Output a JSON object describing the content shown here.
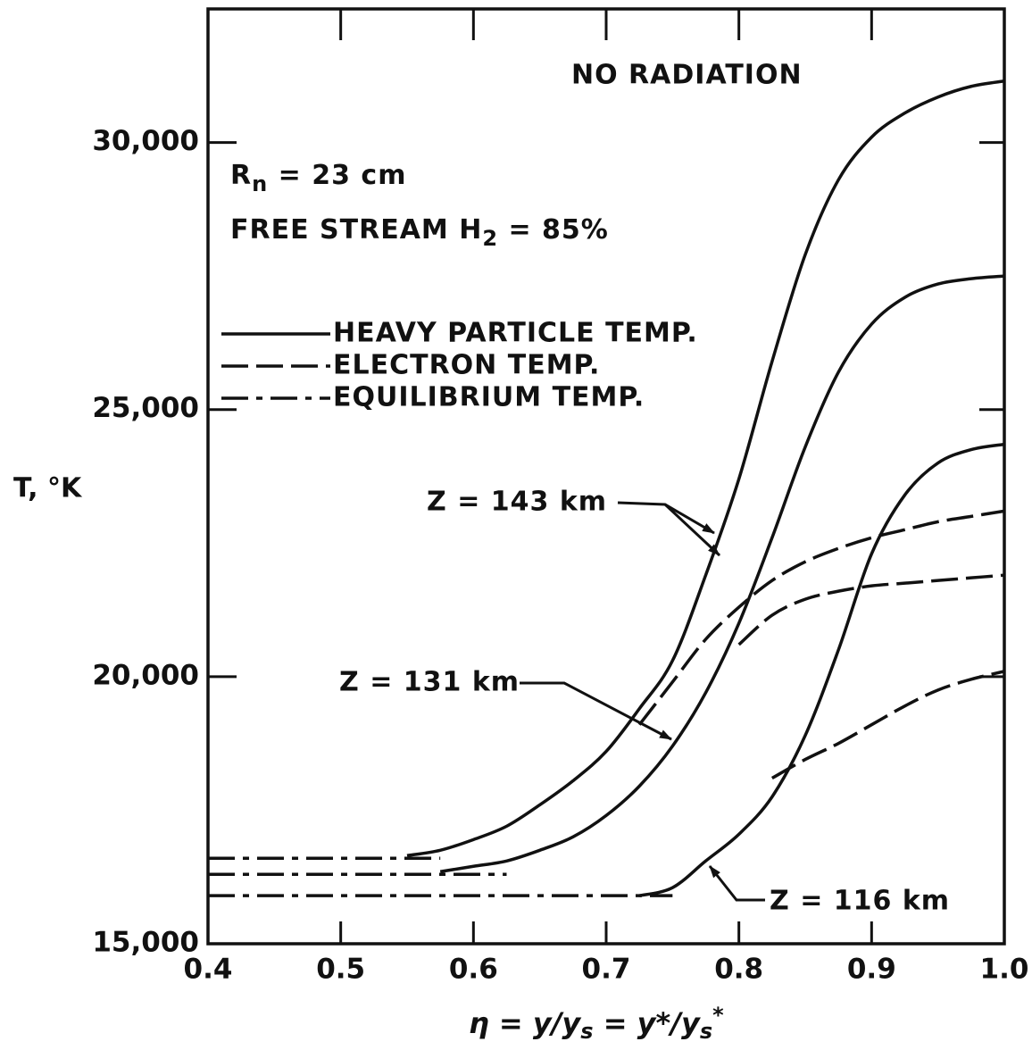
{
  "chart_data": {
    "type": "line",
    "x": [
      0.4,
      0.425,
      0.45,
      0.475,
      0.5,
      0.525,
      0.55,
      0.575,
      0.6,
      0.625,
      0.65,
      0.675,
      0.7,
      0.725,
      0.75,
      0.775,
      0.8,
      0.825,
      0.85,
      0.875,
      0.9,
      0.925,
      0.95,
      0.975,
      1.0
    ],
    "series": [
      {
        "style": "solid",
        "color": "#111",
        "values": [
          null,
          null,
          null,
          null,
          null,
          null,
          16650,
          16750,
          16950,
          17200,
          17600,
          18050,
          18600,
          19400,
          20300,
          21900,
          23700,
          25900,
          27900,
          29300,
          30100,
          30550,
          30850,
          31050,
          31150
        ]
      },
      {
        "style": "solid",
        "color": "#111",
        "values": [
          null,
          null,
          null,
          null,
          null,
          null,
          null,
          16350,
          16450,
          16550,
          16750,
          17000,
          17400,
          17950,
          18700,
          19700,
          21000,
          22600,
          24300,
          25700,
          26600,
          27100,
          27350,
          27450,
          27500
        ]
      },
      {
        "style": "solid",
        "color": "#111",
        "values": [
          null,
          null,
          null,
          null,
          null,
          null,
          null,
          null,
          null,
          null,
          null,
          null,
          null,
          15900,
          16050,
          16550,
          17050,
          17750,
          18900,
          20500,
          22300,
          23400,
          24000,
          24250,
          24350
        ]
      },
      {
        "style": "dashed",
        "color": "#111",
        "values": [
          null,
          null,
          null,
          null,
          null,
          null,
          null,
          null,
          null,
          null,
          null,
          null,
          null,
          19100,
          19900,
          20700,
          21300,
          21800,
          22150,
          22400,
          22600,
          22750,
          22900,
          23000,
          23100
        ]
      },
      {
        "style": "dashed",
        "color": "#111",
        "values": [
          null,
          null,
          null,
          null,
          null,
          null,
          null,
          null,
          null,
          null,
          null,
          null,
          null,
          null,
          null,
          null,
          20600,
          21150,
          21450,
          21600,
          21700,
          21750,
          21800,
          21850,
          21900
        ]
      },
      {
        "style": "dashed",
        "color": "#111",
        "values": [
          null,
          null,
          null,
          null,
          null,
          null,
          null,
          null,
          null,
          null,
          null,
          null,
          null,
          null,
          null,
          null,
          null,
          18100,
          18450,
          18750,
          19100,
          19450,
          19750,
          19950,
          20100
        ]
      },
      {
        "style": "dash-dot",
        "color": "#111",
        "values": [
          16600,
          16600,
          16600,
          16600,
          16600,
          16600,
          16600,
          16600,
          null,
          null,
          null,
          null,
          null,
          null,
          null,
          null,
          null,
          null,
          null,
          null,
          null,
          null,
          null,
          null,
          null
        ]
      },
      {
        "style": "dash-dot",
        "color": "#111",
        "values": [
          16300,
          16300,
          16300,
          16300,
          16300,
          16300,
          16300,
          16300,
          16300,
          16300,
          null,
          null,
          null,
          null,
          null,
          null,
          null,
          null,
          null,
          null,
          null,
          null,
          null,
          null,
          null
        ]
      },
      {
        "style": "dash-dot",
        "color": "#111",
        "values": [
          15900,
          15900,
          15900,
          15900,
          15900,
          15900,
          15900,
          15900,
          15900,
          15900,
          15900,
          15900,
          15900,
          15900,
          15900,
          null,
          null,
          null,
          null,
          null,
          null,
          null,
          null,
          null,
          null
        ]
      }
    ],
    "legend": [
      {
        "label": "HEAVY PARTICLE TEMP.",
        "style": "solid"
      },
      {
        "label": "ELECTRON TEMP.",
        "style": "dashed"
      },
      {
        "label": "EQUILIBRIUM TEMP.",
        "style": "dash-dot"
      }
    ],
    "xlim": [
      0.4,
      1.0
    ],
    "xticks": [
      0.4,
      0.5,
      0.6,
      0.7,
      0.8,
      0.9,
      {
        "value": 1.0,
        "label": "1.0"
      }
    ],
    "ylim": [
      15000,
      32500
    ],
    "yticks": [
      {
        "value": 15000,
        "label": "15,000"
      },
      {
        "value": 20000,
        "label": "20,000"
      },
      {
        "value": 25000,
        "label": "25,000"
      },
      {
        "value": 30000,
        "label": "30,000"
      }
    ],
    "y_label": "T, °K",
    "x_label": [
      "η = y/y",
      "s",
      " = y*/y",
      "s",
      "*"
    ],
    "annotations": {
      "condition": "NO RADIATION",
      "radius": [
        "R",
        "n",
        " = 23 cm"
      ],
      "stream": [
        "FREE STREAM H",
        "2",
        " = 85%"
      ],
      "z143": "Z = 143 km",
      "z131": "Z = 131 km",
      "z116": "Z = 116 km"
    }
  }
}
